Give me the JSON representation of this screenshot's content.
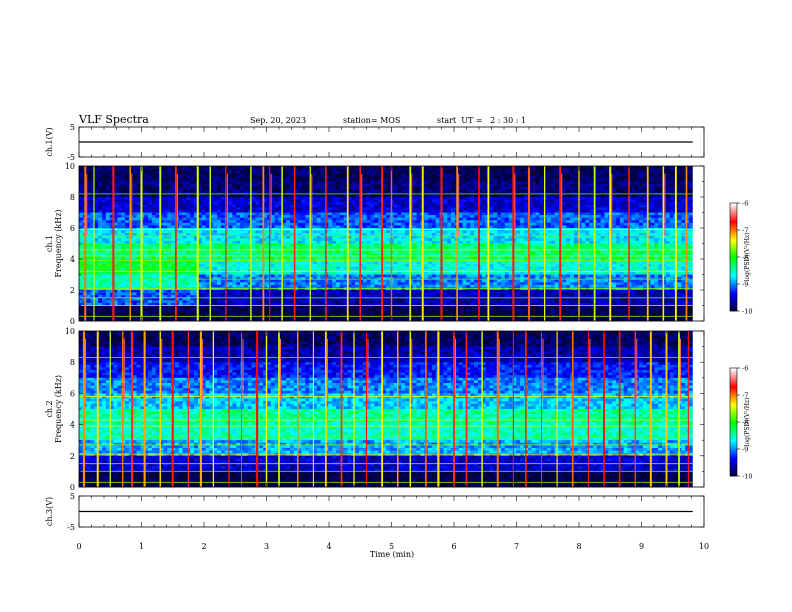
{
  "header": {
    "title": "VLF Spectra",
    "date": "Sep. 20, 2023",
    "station": "station= MOS",
    "start_ut": "start  UT =   2 : 30 : 1"
  },
  "chart_data": [
    {
      "type": "line",
      "panel": "ch1-voltage",
      "ylabel": "ch.1(V)",
      "ylim": [
        -5,
        5
      ],
      "yticks": [
        "5",
        "-5"
      ],
      "xlim": [
        0,
        10
      ],
      "series": [
        {
          "x": [
            0,
            9.82
          ],
          "y": [
            0,
            0
          ]
        }
      ]
    },
    {
      "type": "heatmap",
      "panel": "ch1-spectrogram",
      "ylabel": "ch.1\nFrequency (kHz)",
      "ylim": [
        0,
        10
      ],
      "yticks": [
        "0",
        "2",
        "4",
        "6",
        "8",
        "10"
      ],
      "xlim": [
        0,
        10
      ],
      "data_xmax": 9.82,
      "colorbar": {
        "label": "log(PSD)(V²/Hz)",
        "range": [
          -10,
          -6
        ],
        "ticks": [
          "-6",
          "-7",
          "-8",
          "-9",
          "-10"
        ]
      },
      "background_level": [
        -10,
        -9.6,
        -9.0,
        -8.6,
        -8.3,
        -8.7,
        -9.1,
        -9.5,
        -9.8,
        -9.9
      ],
      "bands_khz": [
        0.3,
        1.0,
        1.5,
        2.1,
        2.7,
        3.2,
        3.9,
        4.2,
        4.6,
        5.5,
        5.9,
        8.2
      ],
      "spikes_min": [
        0.1,
        0.24,
        0.55,
        0.82,
        1.0,
        1.3,
        1.55,
        1.9,
        2.1,
        2.35,
        2.75,
        2.95,
        3.05,
        3.25,
        3.45,
        3.7,
        3.95,
        4.3,
        4.5,
        4.85,
        5.0,
        5.3,
        5.5,
        5.8,
        6.05,
        6.4,
        6.55,
        6.95,
        7.2,
        7.45,
        7.7,
        8.0,
        8.25,
        8.5,
        8.8,
        9.1,
        9.35,
        9.55,
        9.72
      ]
    },
    {
      "type": "heatmap",
      "panel": "ch2-spectrogram",
      "ylabel": "ch.2\nFrequency (kHz)",
      "ylim": [
        0,
        10
      ],
      "yticks": [
        "0",
        "2",
        "4",
        "6",
        "8",
        "10"
      ],
      "xlim": [
        0,
        10
      ],
      "data_xmax": 9.82,
      "colorbar": {
        "label": "log(PSD)(V²/Hz)",
        "range": [
          -10,
          -6
        ],
        "ticks": [
          "-6",
          "-7",
          "-8",
          "-9",
          "-10"
        ]
      },
      "background_level": [
        -10,
        -9.5,
        -8.9,
        -8.5,
        -8.4,
        -8.8,
        -9.0,
        -9.3,
        -9.6,
        -9.9
      ],
      "bands_khz": [
        0.3,
        1.0,
        1.5,
        2.1,
        2.7,
        3.2,
        3.9,
        4.3,
        5.8,
        8.3
      ],
      "spikes_min": [
        0.08,
        0.3,
        0.5,
        0.7,
        0.85,
        1.05,
        1.3,
        1.5,
        1.75,
        1.95,
        2.15,
        2.4,
        2.6,
        2.85,
        3.0,
        3.2,
        3.5,
        3.75,
        3.95,
        4.2,
        4.4,
        4.6,
        4.85,
        5.1,
        5.3,
        5.55,
        5.75,
        6.0,
        6.2,
        6.45,
        6.7,
        6.95,
        7.15,
        7.4,
        7.65,
        7.9,
        8.15,
        8.4,
        8.65,
        8.9,
        9.15,
        9.4,
        9.6,
        9.75
      ]
    },
    {
      "type": "line",
      "panel": "ch3-voltage",
      "ylabel": "ch.3(V)",
      "ylim": [
        -5,
        5
      ],
      "yticks": [
        "5",
        "-5"
      ],
      "xlim": [
        0,
        10
      ],
      "series": [
        {
          "x": [
            0,
            9.82
          ],
          "y": [
            0,
            0
          ]
        }
      ]
    }
  ],
  "xaxis": {
    "label": "Time (min)",
    "ticks": [
      "0",
      "1",
      "2",
      "3",
      "4",
      "5",
      "6",
      "7",
      "8",
      "9",
      "10"
    ]
  },
  "colors": {
    "background": "#ffffff",
    "axis": "#000000",
    "colormap": [
      "#00003c",
      "#0000ff",
      "#00ffff",
      "#00ff00",
      "#ffff00",
      "#ff0000",
      "#ffffff"
    ]
  }
}
